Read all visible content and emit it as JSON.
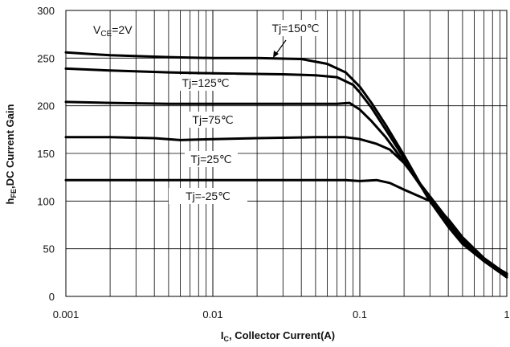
{
  "chart_data": {
    "type": "line",
    "x_scale": "log",
    "xlim": [
      0.001,
      1
    ],
    "ylim": [
      0,
      300
    ],
    "grid": true,
    "x_ticks": [
      "0.001",
      "0.01",
      "0.1",
      "1"
    ],
    "y_ticks": [
      "0",
      "50",
      "100",
      "150",
      "200",
      "250",
      "300"
    ],
    "xlabel": {
      "main": "I",
      "sub": "C",
      "rest": ", Collector Current(A)"
    },
    "ylabel": {
      "main": "h",
      "sub": "FE",
      "rest": ",DC Current Gain"
    },
    "condition": {
      "main": "V",
      "sub": "CE",
      "rest": "=2V"
    },
    "series": [
      {
        "name": "Tj=150℃",
        "points": [
          [
            0.001,
            256
          ],
          [
            0.002,
            253
          ],
          [
            0.005,
            251
          ],
          [
            0.01,
            250
          ],
          [
            0.02,
            250
          ],
          [
            0.04,
            249
          ],
          [
            0.06,
            244
          ],
          [
            0.08,
            235
          ],
          [
            0.1,
            220
          ],
          [
            0.12,
            203
          ],
          [
            0.15,
            180
          ],
          [
            0.2,
            148
          ],
          [
            0.3,
            100
          ],
          [
            0.4,
            73
          ],
          [
            0.5,
            55
          ],
          [
            0.7,
            37
          ],
          [
            1,
            24
          ]
        ]
      },
      {
        "name": "Tj=125℃",
        "points": [
          [
            0.001,
            239
          ],
          [
            0.002,
            237
          ],
          [
            0.005,
            235
          ],
          [
            0.01,
            234
          ],
          [
            0.03,
            233
          ],
          [
            0.05,
            232
          ],
          [
            0.07,
            230
          ],
          [
            0.09,
            222
          ],
          [
            0.1,
            214
          ],
          [
            0.12,
            198
          ],
          [
            0.15,
            175
          ],
          [
            0.2,
            145
          ],
          [
            0.3,
            100
          ],
          [
            0.4,
            75
          ],
          [
            0.5,
            57
          ],
          [
            0.7,
            37
          ],
          [
            1,
            22
          ]
        ]
      },
      {
        "name": "Tj=75℃",
        "points": [
          [
            0.001,
            204
          ],
          [
            0.002,
            203
          ],
          [
            0.005,
            202
          ],
          [
            0.01,
            202
          ],
          [
            0.03,
            202
          ],
          [
            0.05,
            202
          ],
          [
            0.07,
            202
          ],
          [
            0.085,
            203
          ],
          [
            0.1,
            196
          ],
          [
            0.12,
            184
          ],
          [
            0.15,
            167
          ],
          [
            0.2,
            141
          ],
          [
            0.3,
            102
          ],
          [
            0.4,
            76
          ],
          [
            0.5,
            58
          ],
          [
            0.7,
            37
          ],
          [
            1,
            20
          ]
        ]
      },
      {
        "name": "Tj=25℃",
        "points": [
          [
            0.001,
            167
          ],
          [
            0.002,
            167
          ],
          [
            0.004,
            166
          ],
          [
            0.006,
            164
          ],
          [
            0.01,
            165
          ],
          [
            0.02,
            166
          ],
          [
            0.05,
            167
          ],
          [
            0.08,
            167
          ],
          [
            0.1,
            165
          ],
          [
            0.13,
            160
          ],
          [
            0.16,
            154
          ],
          [
            0.2,
            140
          ],
          [
            0.3,
            105
          ],
          [
            0.4,
            80
          ],
          [
            0.5,
            60
          ],
          [
            0.7,
            38
          ],
          [
            1,
            22
          ]
        ]
      },
      {
        "name": "Tj=-25℃",
        "points": [
          [
            0.001,
            122
          ],
          [
            0.005,
            122
          ],
          [
            0.01,
            122
          ],
          [
            0.03,
            122
          ],
          [
            0.05,
            122
          ],
          [
            0.08,
            122
          ],
          [
            0.1,
            121
          ],
          [
            0.13,
            122
          ],
          [
            0.16,
            119
          ],
          [
            0.2,
            112
          ],
          [
            0.3,
            100
          ],
          [
            0.4,
            81
          ],
          [
            0.5,
            62
          ],
          [
            0.7,
            40
          ],
          [
            1,
            23
          ]
        ]
      }
    ],
    "annotations": [
      {
        "text": "Tj=150℃",
        "series": "Tj=150℃"
      },
      {
        "text": "Tj=125℃",
        "series": "Tj=125℃"
      },
      {
        "text": "Tj=75℃",
        "series": "Tj=75℃"
      },
      {
        "text": "Tj=25℃",
        "series": "Tj=25℃"
      },
      {
        "text": "Tj=-25℃",
        "series": "Tj=-25℃"
      }
    ]
  }
}
